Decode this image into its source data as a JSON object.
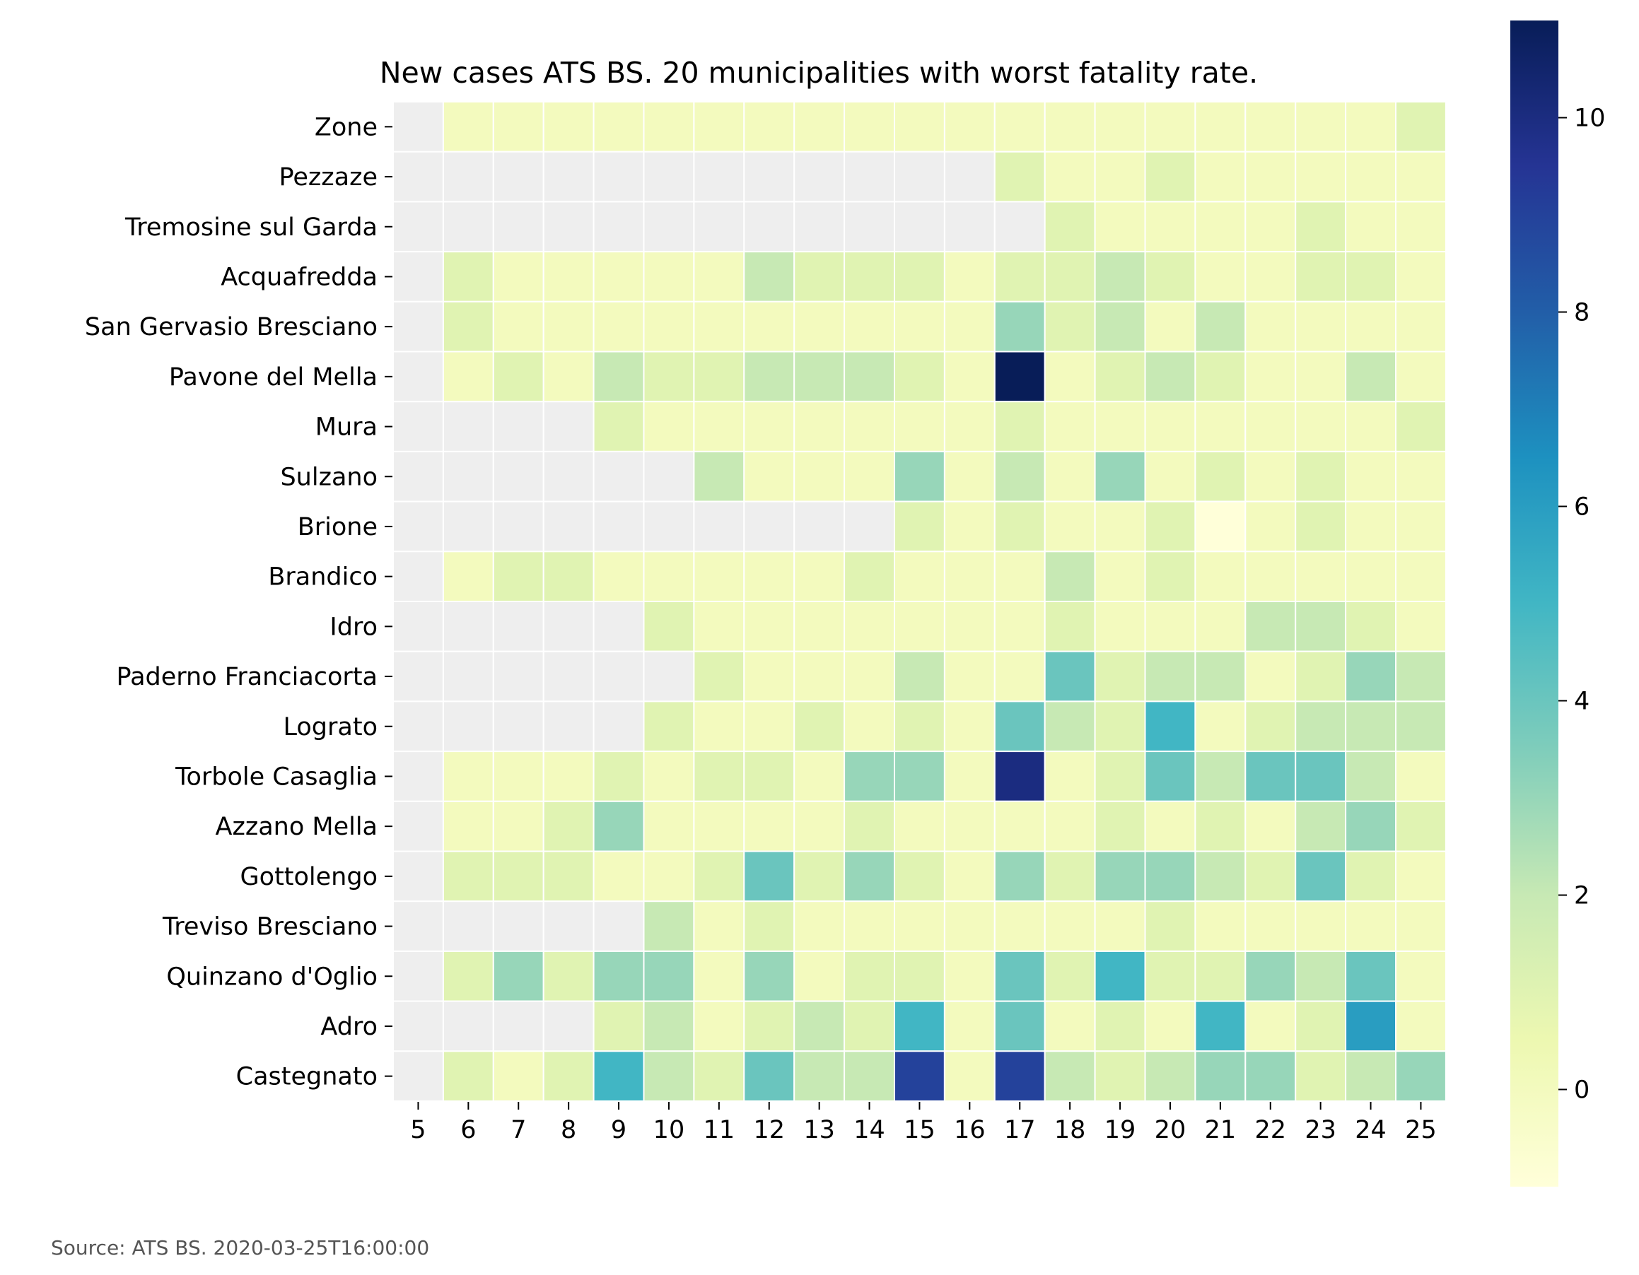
{
  "chart_data": {
    "type": "heatmap",
    "title": "New cases ATS BS. 20 municipalities with worst fatality rate.",
    "xlabel": "",
    "ylabel": "",
    "x": [
      "5",
      "6",
      "7",
      "8",
      "9",
      "10",
      "11",
      "12",
      "13",
      "14",
      "15",
      "16",
      "17",
      "18",
      "19",
      "20",
      "21",
      "22",
      "23",
      "24",
      "25"
    ],
    "y": [
      "Zone",
      "Pezzaze",
      "Tremosine sul Garda",
      "Acquafredda",
      "San Gervasio Bresciano",
      "Pavone del Mella",
      "Mura",
      "Sulzano",
      "Brione",
      "Brandico",
      "Idro",
      "Paderno Franciacorta",
      "Lograto",
      "Torbole Casaglia",
      "Azzano Mella",
      "Gottolengo",
      "Treviso Bresciano",
      "Quinzano d'Oglio",
      "Adro",
      "Castegnato"
    ],
    "values": [
      [
        null,
        0,
        0,
        0,
        0,
        0,
        0,
        0,
        0,
        0,
        0,
        0,
        0,
        0,
        0,
        0,
        0,
        0,
        0,
        0,
        1
      ],
      [
        null,
        null,
        null,
        null,
        null,
        null,
        null,
        null,
        null,
        null,
        null,
        null,
        1,
        0,
        0,
        1,
        0,
        0,
        0,
        0,
        0
      ],
      [
        null,
        null,
        null,
        null,
        null,
        null,
        null,
        null,
        null,
        null,
        null,
        null,
        null,
        1,
        0,
        0,
        0,
        0,
        1,
        0,
        0
      ],
      [
        null,
        1,
        0,
        0,
        0,
        0,
        0,
        2,
        1,
        1,
        1,
        0,
        1,
        1,
        2,
        1,
        0,
        0,
        1,
        1,
        0
      ],
      [
        null,
        1,
        0,
        0,
        0,
        0,
        0,
        0,
        0,
        0,
        0,
        0,
        3,
        1,
        2,
        0,
        2,
        0,
        0,
        0,
        0
      ],
      [
        null,
        0,
        1,
        0,
        2,
        1,
        1,
        2,
        2,
        2,
        1,
        0,
        11,
        0,
        1,
        2,
        1,
        0,
        0,
        2,
        0
      ],
      [
        null,
        null,
        null,
        null,
        1,
        0,
        0,
        0,
        0,
        0,
        0,
        0,
        1,
        0,
        0,
        0,
        0,
        0,
        0,
        0,
        1
      ],
      [
        null,
        null,
        null,
        null,
        null,
        null,
        2,
        0,
        0,
        0,
        3,
        0,
        2,
        0,
        3,
        0,
        1,
        0,
        1,
        0,
        0
      ],
      [
        null,
        null,
        null,
        null,
        null,
        null,
        null,
        null,
        null,
        null,
        1,
        0,
        1,
        0,
        0,
        1,
        -1,
        0,
        1,
        0,
        0
      ],
      [
        null,
        0,
        1,
        1,
        0,
        0,
        0,
        0,
        0,
        1,
        0,
        0,
        0,
        2,
        0,
        1,
        0,
        0,
        0,
        0,
        0
      ],
      [
        null,
        null,
        null,
        null,
        null,
        1,
        0,
        0,
        0,
        0,
        0,
        0,
        0,
        1,
        0,
        0,
        0,
        2,
        2,
        1,
        0
      ],
      [
        null,
        null,
        null,
        null,
        null,
        null,
        1,
        0,
        0,
        0,
        2,
        0,
        0,
        4,
        1,
        2,
        2,
        0,
        1,
        3,
        2
      ],
      [
        null,
        null,
        null,
        null,
        null,
        1,
        0,
        0,
        1,
        0,
        1,
        0,
        4,
        2,
        1,
        5,
        0,
        1,
        2,
        2,
        2
      ],
      [
        null,
        0,
        0,
        0,
        1,
        0,
        1,
        1,
        0,
        3,
        3,
        0,
        10,
        0,
        1,
        4,
        2,
        4,
        4,
        2,
        0
      ],
      [
        null,
        0,
        0,
        1,
        3,
        0,
        0,
        0,
        0,
        1,
        0,
        0,
        0,
        0,
        1,
        0,
        1,
        0,
        2,
        3,
        1
      ],
      [
        null,
        1,
        1,
        1,
        0,
        0,
        1,
        4,
        1,
        3,
        1,
        0,
        3,
        1,
        3,
        3,
        2,
        1,
        4,
        1,
        0
      ],
      [
        null,
        null,
        null,
        null,
        null,
        2,
        0,
        1,
        0,
        0,
        0,
        0,
        0,
        0,
        0,
        1,
        0,
        0,
        0,
        0,
        0
      ],
      [
        null,
        1,
        3,
        1,
        3,
        3,
        0,
        3,
        0,
        1,
        1,
        0,
        4,
        1,
        5,
        1,
        1,
        3,
        2,
        4,
        0
      ],
      [
        null,
        null,
        null,
        null,
        1,
        2,
        0,
        1,
        2,
        1,
        5,
        0,
        4,
        0,
        1,
        0,
        5,
        0,
        1,
        6,
        0
      ],
      [
        null,
        1,
        0,
        1,
        5,
        2,
        1,
        4,
        2,
        2,
        9,
        0,
        9,
        2,
        1,
        2,
        3,
        3,
        1,
        2,
        3
      ]
    ],
    "zlim": [
      -1,
      11
    ],
    "colormap": "YlGnBu",
    "missing_color": "#eeeeee",
    "colorbar_ticks": [
      0,
      2,
      4,
      6,
      8,
      10
    ],
    "annotations": [
      "Source: ATS BS. 2020-03-25T16:00:00"
    ]
  },
  "colors": {
    "colormap_stops": [
      "#ffffd9",
      "#edf8b1",
      "#c7e9b4",
      "#7fcdbb",
      "#41b6c4",
      "#1d91c0",
      "#225ea8",
      "#253494",
      "#081d58"
    ],
    "text": "#000000",
    "source_text": "#555555",
    "grid_line": "#ffffff"
  }
}
